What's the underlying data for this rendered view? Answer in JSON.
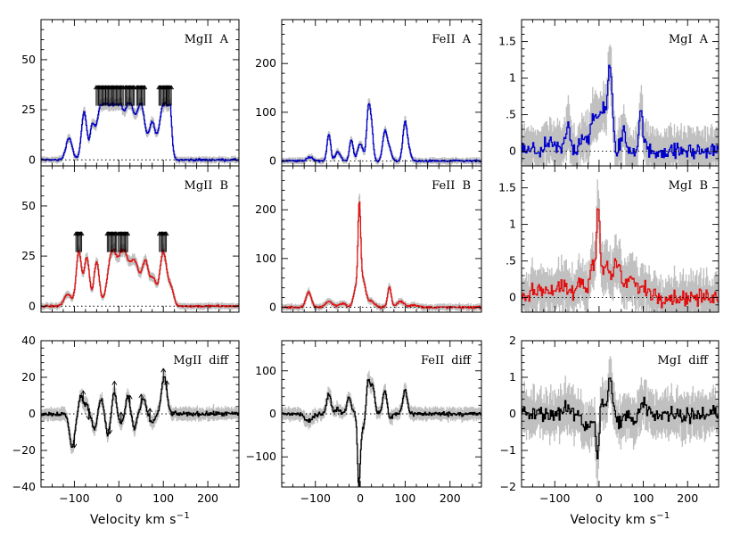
{
  "x_axis": {
    "label": "Velocity  km  s",
    "exponent": "−1",
    "range": [
      -175,
      270
    ],
    "ticks": [
      -100,
      0,
      100,
      200
    ],
    "tick_labels": [
      "−100",
      "0",
      "100",
      "200"
    ]
  },
  "colors": {
    "A": "#0000cc",
    "B": "#e01010",
    "diff": "#000000",
    "error": "#c0c0c0"
  },
  "chart_data": [
    {
      "type": "line",
      "label_ion": "MgII",
      "label_tag": "A",
      "series": "A",
      "ylim": [
        -3,
        70
      ],
      "yticks": [
        0,
        25,
        50
      ],
      "ytick_labels": [
        "0",
        "25",
        "50"
      ],
      "saturated_cap": 37,
      "components": [
        [
          -112,
          11,
          7
        ],
        [
          -78,
          24,
          6
        ],
        [
          -60,
          14,
          5
        ],
        [
          -40,
          27,
          10
        ],
        [
          -20,
          27,
          8
        ],
        [
          0,
          27,
          10
        ],
        [
          25,
          27,
          10
        ],
        [
          50,
          27,
          9
        ],
        [
          75,
          18,
          7
        ],
        [
          100,
          27,
          9
        ],
        [
          113,
          27,
          5
        ]
      ]
    },
    {
      "type": "line",
      "label_ion": "FeII",
      "label_tag": "A",
      "series": "A",
      "ylim": [
        -10,
        290
      ],
      "yticks": [
        0,
        100,
        200
      ],
      "ytick_labels": [
        "0",
        "100",
        "200"
      ],
      "components": [
        [
          -112,
          8,
          7
        ],
        [
          -70,
          55,
          4
        ],
        [
          -50,
          18,
          6
        ],
        [
          -20,
          45,
          4
        ],
        [
          0,
          35,
          6
        ],
        [
          18,
          100,
          4
        ],
        [
          25,
          65,
          4
        ],
        [
          55,
          60,
          5
        ],
        [
          65,
          22,
          5
        ],
        [
          100,
          80,
          5
        ],
        [
          110,
          15,
          4
        ]
      ]
    },
    {
      "type": "line",
      "label_ion": "MgI",
      "label_tag": "A",
      "series": "A",
      "ylim": [
        -0.2,
        1.8
      ],
      "yticks": [
        0,
        0.5,
        1,
        1.5
      ],
      "ytick_labels": [
        "0",
        ".5",
        "1",
        "1.5"
      ],
      "components": [
        [
          -110,
          0.08,
          15
        ],
        [
          -70,
          0.35,
          5
        ],
        [
          -35,
          0.22,
          8
        ],
        [
          -10,
          0.45,
          8
        ],
        [
          10,
          0.55,
          8
        ],
        [
          25,
          1.05,
          5
        ],
        [
          55,
          0.25,
          6
        ],
        [
          95,
          0.5,
          5
        ]
      ]
    },
    {
      "type": "line",
      "label_ion": "MgII",
      "label_tag": "B",
      "series": "B",
      "ylim": [
        -3,
        70
      ],
      "yticks": [
        0,
        25,
        50
      ],
      "ytick_labels": [
        "0",
        "25",
        "50"
      ],
      "saturated_cap": 37,
      "components": [
        [
          -115,
          6,
          8
        ],
        [
          -90,
          27,
          6
        ],
        [
          -72,
          24,
          6
        ],
        [
          -50,
          22,
          6
        ],
        [
          -15,
          27,
          10
        ],
        [
          10,
          27,
          10
        ],
        [
          35,
          22,
          10
        ],
        [
          60,
          22,
          8
        ],
        [
          78,
          12,
          6
        ],
        [
          100,
          27,
          8
        ],
        [
          118,
          8,
          6
        ]
      ]
    },
    {
      "type": "line",
      "label_ion": "FeII",
      "label_tag": "B",
      "series": "B",
      "ylim": [
        -10,
        290
      ],
      "yticks": [
        0,
        100,
        200
      ],
      "ytick_labels": [
        "0",
        "100",
        "200"
      ],
      "components": [
        [
          -115,
          30,
          6
        ],
        [
          -70,
          12,
          8
        ],
        [
          -40,
          8,
          8
        ],
        [
          -10,
          40,
          5
        ],
        [
          -2,
          185,
          3
        ],
        [
          6,
          55,
          6
        ],
        [
          25,
          12,
          8
        ],
        [
          65,
          42,
          4
        ],
        [
          90,
          12,
          8
        ],
        [
          120,
          5,
          8
        ]
      ]
    },
    {
      "type": "line",
      "label_ion": "MgI",
      "label_tag": "B",
      "series": "B",
      "ylim": [
        -0.2,
        1.8
      ],
      "yticks": [
        0,
        0.5,
        1,
        1.5
      ],
      "ytick_labels": [
        "0",
        ".5",
        "1",
        "1.5"
      ],
      "components": [
        [
          -130,
          0.12,
          20
        ],
        [
          -80,
          0.12,
          15
        ],
        [
          -40,
          0.2,
          8
        ],
        [
          -15,
          0.45,
          6
        ],
        [
          -2,
          1.2,
          4
        ],
        [
          15,
          0.45,
          8
        ],
        [
          40,
          0.5,
          8
        ],
        [
          70,
          0.25,
          10
        ],
        [
          100,
          0.12,
          15
        ]
      ]
    },
    {
      "type": "line",
      "label_ion": "MgII",
      "label_tag": "diff",
      "series": "diff",
      "ylim": [
        -40,
        40
      ],
      "yticks": [
        -40,
        -20,
        0,
        20,
        40
      ],
      "ytick_labels": [
        "−40",
        "−20",
        "0",
        "20",
        "40"
      ],
      "components": [
        [
          -105,
          -18,
          6
        ],
        [
          -85,
          10,
          5
        ],
        [
          -72,
          5,
          4
        ],
        [
          -55,
          -8,
          5
        ],
        [
          -40,
          8,
          5
        ],
        [
          -25,
          -12,
          4
        ],
        [
          -10,
          12,
          4
        ],
        [
          5,
          -5,
          5
        ],
        [
          20,
          10,
          4
        ],
        [
          35,
          -8,
          4
        ],
        [
          55,
          8,
          5
        ],
        [
          75,
          -5,
          5
        ],
        [
          102,
          20,
          6
        ]
      ],
      "arrows_up": [
        -80,
        -10,
        5,
        25,
        50,
        70,
        100,
        108
      ],
      "arrows_down": [
        -100,
        -68,
        -20
      ]
    },
    {
      "type": "line",
      "label_ion": "FeII",
      "label_tag": "diff",
      "series": "diff",
      "ylim": [
        -170,
        170
      ],
      "yticks": [
        -100,
        0,
        100
      ],
      "ytick_labels": [
        "−100",
        "0",
        "100"
      ],
      "components": [
        [
          -115,
          -18,
          8
        ],
        [
          -70,
          45,
          5
        ],
        [
          -50,
          12,
          5
        ],
        [
          -25,
          38,
          5
        ],
        [
          -3,
          -160,
          3
        ],
        [
          5,
          -35,
          5
        ],
        [
          18,
          80,
          4
        ],
        [
          28,
          65,
          4
        ],
        [
          55,
          55,
          5
        ],
        [
          65,
          -15,
          5
        ],
        [
          100,
          55,
          5
        ]
      ]
    },
    {
      "type": "line",
      "label_ion": "MgI",
      "label_tag": "diff",
      "series": "diff",
      "ylim": [
        -2,
        2
      ],
      "yticks": [
        -2,
        -1,
        0,
        1,
        2
      ],
      "ytick_labels": [
        "−2",
        "−1",
        "0",
        "1",
        "2"
      ],
      "components": [
        [
          -70,
          0.2,
          5
        ],
        [
          -30,
          -0.35,
          6
        ],
        [
          -15,
          -0.25,
          5
        ],
        [
          -3,
          -1.2,
          3
        ],
        [
          10,
          0.25,
          6
        ],
        [
          25,
          1.0,
          4
        ],
        [
          50,
          -0.3,
          6
        ],
        [
          80,
          -0.25,
          6
        ],
        [
          100,
          0.3,
          6
        ]
      ]
    }
  ]
}
